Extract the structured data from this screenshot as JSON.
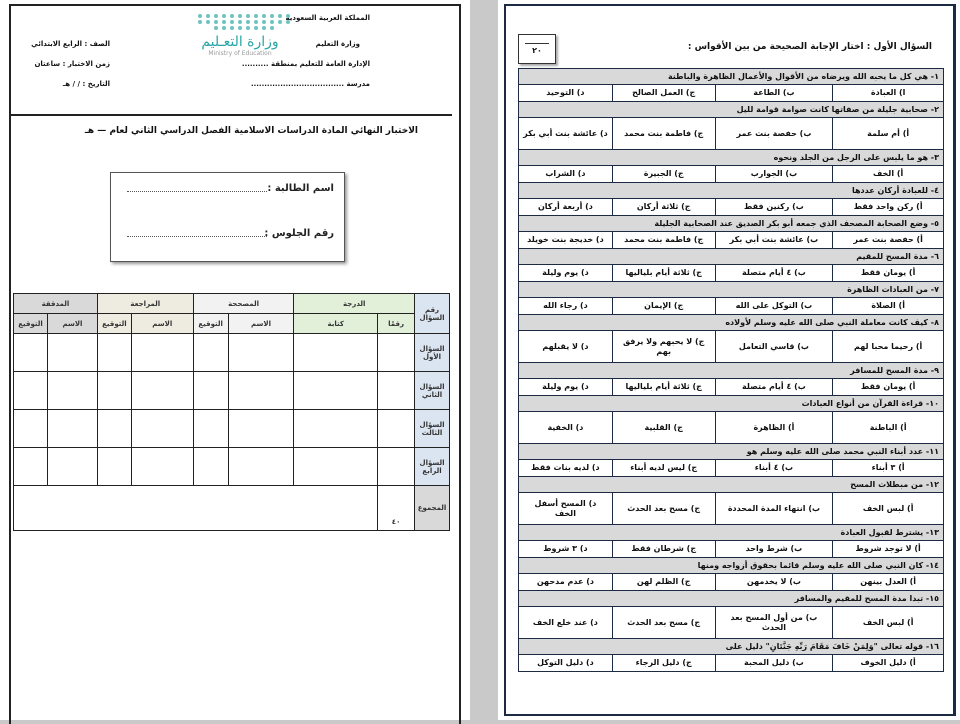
{
  "cover": {
    "header_right": [
      "المملكة العربية السعودية",
      "وزارة التعليم",
      "الإدارة العامة للتعليم بمنطقة ..........",
      "مدرسة ..................................."
    ],
    "header_left": [
      "الصف : الرابع الابتدائي",
      "زمن الاختبار : ساعتان",
      "التاريخ :   /    /     هـ"
    ],
    "logo_ar": "وزارة التعـليم",
    "logo_en": "Ministry of Education",
    "title": "الاختبار النهائي المادة الدراسات الاسلامية الفصل الدراسي الثاني لعام       —       هـ",
    "student_name_label": "اسم الطالبة :",
    "seat_number_label": "رقم الجلوس :",
    "grade_table": {
      "question_number_header": "رقم السؤال",
      "groups": [
        "الدرجة",
        "المصححة",
        "المراجعة",
        "المدققة"
      ],
      "sub_headers": [
        "رقمًا",
        "كتابة",
        "الاسم",
        "التوقيع",
        "الاسم",
        "التوقيع",
        "الاسم",
        "التوقيع"
      ],
      "rows": [
        "السؤال الأول",
        "السؤال الثاني",
        "السؤال الثالث",
        "السؤال الرابع"
      ],
      "total_label": "المجموع",
      "total_value": "٤٠"
    },
    "group_colors": [
      "#e2efd9",
      "#f2f2f2",
      "#eeebe0",
      "#d9d9d9"
    ],
    "row_header_color": "#dbe5f1"
  },
  "exam": {
    "score_total": "٢٠",
    "section_title": "السؤال الأول : اختار الإجابة الصحيحة من بين الأقواس :",
    "questions": [
      {
        "q": "١- هي كل ما يحبه الله ويرضاه من الأقوال والأعمال الظاهرة والباطنة",
        "a": [
          "ا) العبادة",
          "ب) الطاعة",
          "ج) العمل الصالح",
          "د) التوحيد"
        ]
      },
      {
        "q": "٢- صحابية جليلة من صفاتها كانت صوامة قوامة لليل",
        "a": [
          "أ) أم سلمة",
          "ب) حفصة بنت عمر",
          "ج) فاطمة بنت محمد",
          "د) عائشة بنت أبي بكر"
        ]
      },
      {
        "q": "٣- هو ما يلبس على الرجل من الجلد ونحوه",
        "a": [
          "أ)  الخف",
          "ب) الجوارب",
          "ج) الجبيرة",
          "د)  الشراب"
        ]
      },
      {
        "q": "٤- للعبادة أركان عددها",
        "a": [
          "أ)  ركن واحد فقط",
          "ب) ركنين فقط",
          "ج) ثلاثة أركان",
          "د)  أربعة أركان"
        ]
      },
      {
        "q": "٥- وضع الصحابة المصحف الذي جمعه أبو بكر الصديق عند الصحابية الجليلة",
        "a": [
          "أ)  حفصة بنت عمر",
          "ب)  عائشة بنت أبي بكر",
          "ج)  فاطمة بنت محمد",
          "د)  خديجة بنت خويلد"
        ]
      },
      {
        "q": "٦- مدة المسح للمقيم",
        "a": [
          "أ)  يومان فقط",
          "ب)  ٤ أيام متصلة",
          "ج)  ثلاثة أيام بلياليها",
          "د)  يوم وليلة"
        ]
      },
      {
        "q": "٧-  من العبادات الظاهرة",
        "a": [
          "أ)  الصلاة",
          "ب)  التوكل على الله",
          "ج) الإيمان",
          "د) رجاء الله"
        ]
      },
      {
        "q": "٨- كيف كانت معاملة النبي صلى الله عليه وسلم لأولاده",
        "a": [
          "أ)  رحيما محبا لهم",
          "ب)  قاسي التعامل",
          "ج) لا يحبهم ولا يرفق بهم",
          "د)  لا يقبلهم"
        ]
      },
      {
        "q": "٩- مدة المسح للمسافر",
        "a": [
          "أ) يومان فقط",
          "ب) ٤ أيام متصلة",
          "ج)  ثلاثة أيام بلياليها",
          "د) يوم وليلة"
        ]
      },
      {
        "q": "١٠- قراءة القرآن من أنواع العبادات",
        "a": [
          "أ) الباطنة",
          "أ) الظاهرة",
          "ج) القلبية",
          "د) الخفية"
        ]
      },
      {
        "q": "١١-  عدد أبناء النبي محمد صلى الله عليه وسلم هو",
        "a": [
          "أ) ٣ أبناء",
          "ب) ٤ أبناء",
          "ج)  ليس لديه أبناء",
          "د) لديه بنات فقط"
        ]
      },
      {
        "q": "١٢- من مبطلات المسح",
        "a": [
          "أ)  لبس الخف",
          "ب)  انتهاء المدة المحددة",
          "ج)  مسح بعد الحدث",
          "د)  المسح أسفل الخف"
        ]
      },
      {
        "q": "١٣- يشترط لقبول العبادة",
        "a": [
          "أ) لا توجد شروط",
          "ب) شرط واحد",
          "ج)  شرطان فقط",
          "د)  ٣ شروط"
        ]
      },
      {
        "q": "١٤- كان النبي صلى الله عليه وسلم قائما بحقوق أزواجه ومنها",
        "a": [
          "أ)  العدل بينهن",
          "ب) لا يخدمهن",
          "ج)  الظلم لهن",
          "د)  عدم مدحهن"
        ]
      },
      {
        "q": "١٥-  تبدا مدة المسح للمقيم والمسافر",
        "a": [
          "أ)  لبس الخف",
          "ب)  من أول المسح بعد الحدث",
          "ج)  مسح بعد الحدث",
          "د) عند خلع الخف"
        ]
      },
      {
        "q": "١٦-  قوله تعالى \"وَلِمَنْ خَافَ مَقَامَ رَبِّهِ جَنَّتَانِ\" دليل على",
        "a": [
          "أ) دليل الخوف",
          "ب)  دليل المحبة",
          "ج) دليل الرجاء",
          "د) دليل التوكل"
        ]
      }
    ]
  }
}
